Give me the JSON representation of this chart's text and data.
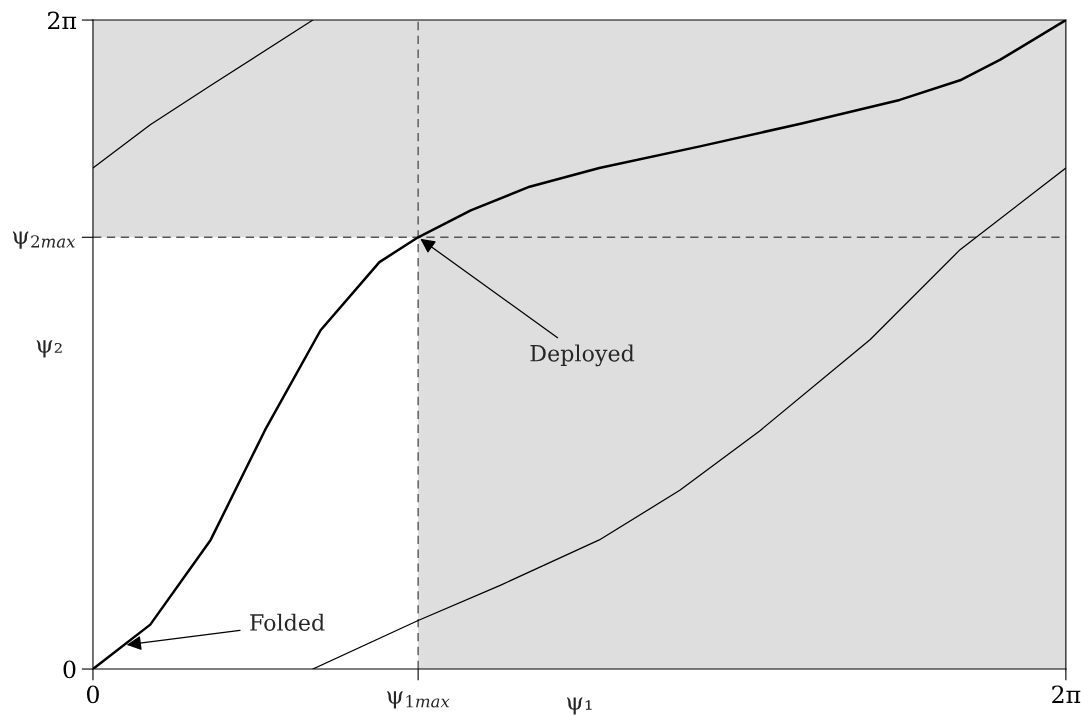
{
  "chart_data": {
    "type": "line",
    "xlabel": "ψ₁",
    "ylabel": "ψ₂",
    "xlim": [
      0,
      6.2832
    ],
    "ylim": [
      0,
      6.2832
    ],
    "xticks": [
      0,
      {
        "value": 2.1,
        "label": null
      },
      {
        "value": 6.2832,
        "label": "2π"
      }
    ],
    "yticks": [
      0,
      {
        "value": 4.18,
        "label": null
      },
      {
        "value": 6.2832,
        "label": "2π"
      }
    ],
    "series": [
      {
        "color": "#000000",
        "x": [
          0,
          0.37,
          0.76,
          1.11,
          1.47,
          1.85,
          2.1,
          2.44,
          2.82,
          3.27,
          3.92,
          4.57,
          5.21,
          5.6,
          5.86,
          6.2832
        ],
        "values": [
          0,
          0.43,
          1.25,
          2.31,
          3.28,
          3.94,
          4.18,
          4.44,
          4.67,
          4.85,
          5.06,
          5.28,
          5.51,
          5.7,
          5.9,
          6.2832
        ]
      },
      {
        "color": "#000000",
        "x": [
          1.42,
          2.1,
          2.63,
          3.27,
          3.79,
          4.31,
          5.02,
          5.6,
          6.2832
        ],
        "values": [
          0,
          0.47,
          0.81,
          1.25,
          1.73,
          2.31,
          3.19,
          4.06,
          4.85
        ]
      },
      {
        "color": "#000000",
        "x": [
          0,
          0.37,
          0.76,
          1.42
        ],
        "values": [
          4.85,
          5.27,
          5.65,
          6.2832
        ]
      }
    ],
    "ref_lines": [
      {
        "axis": "x",
        "value": 2.1,
        "color": "#555555",
        "line_style": "dashed"
      },
      {
        "axis": "y",
        "value": 4.18,
        "color": "#555555",
        "line_style": "dashed"
      }
    ],
    "bands": [
      {
        "axis": "x",
        "from": 2.1,
        "to": 6.2832,
        "color": "#dedede"
      },
      {
        "axis": "y",
        "from": 4.18,
        "to": 6.2832,
        "color": "#dedede"
      }
    ],
    "annotations": [
      {
        "text": "Folded",
        "x": 0.2,
        "y": 0.23
      },
      {
        "text": "Deployed",
        "x": 2.1,
        "y": 4.18
      },
      {
        "text": "ψ$_{1max}$",
        "x": 2.1,
        "y": 0
      },
      {
        "text": "ψ$_{2max}$",
        "x": 0,
        "y": 4.18
      }
    ],
    "grid": false,
    "legend": false,
    "marker": "none",
    "line_style": "solid"
  }
}
